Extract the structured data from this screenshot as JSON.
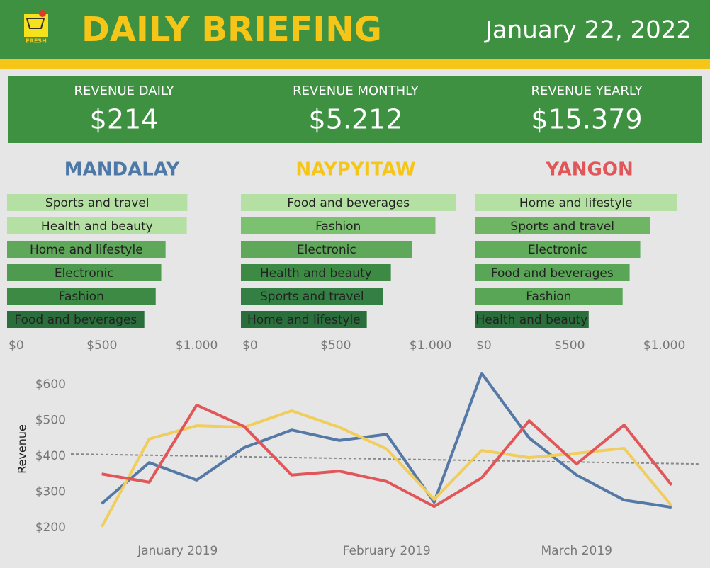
{
  "header": {
    "logo_text": "FRESH",
    "title": "DAILY BRIEFING",
    "date": "January 22, 2022"
  },
  "kpis": [
    {
      "label": "REVENUE DAILY",
      "value": "$214"
    },
    {
      "label": "REVENUE MONTHLY",
      "value": "$5.212"
    },
    {
      "label": "REVENUE YEARLY",
      "value": "$15.379"
    }
  ],
  "chart_data": [
    {
      "type": "hbar",
      "title": "MANDALAY",
      "title_color": "#4e79a7",
      "categories": [
        "Sports and travel",
        "Health and beauty",
        "Home and lifestyle",
        "Electronic",
        "Fashion",
        "Food and beverages"
      ],
      "values": [
        951,
        948,
        836,
        813,
        784,
        724
      ],
      "colors": [
        "#b5e0a3",
        "#b5e0a3",
        "#5fa85a",
        "#4e9a4f",
        "#3d8a45",
        "#2a6e3b"
      ],
      "xlim": [
        0,
        1140
      ],
      "xticks": [
        {
          "value": 0,
          "label": "$0"
        },
        {
          "value": 500,
          "label": "$500"
        },
        {
          "value": 1000,
          "label": "$1.000"
        }
      ]
    },
    {
      "type": "hbar",
      "title": "NAYPYITAW",
      "title_color": "#f5c518",
      "categories": [
        "Food and beverages",
        "Fashion",
        "Electronic",
        "Health and beauty",
        "Sports and travel",
        "Home and lifestyle"
      ],
      "values": [
        1134,
        1026,
        903,
        791,
        750,
        664
      ],
      "colors": [
        "#b5e0a3",
        "#7cc16f",
        "#5fa85a",
        "#3d8a45",
        "#347f43",
        "#2a6e3b"
      ],
      "xlim": [
        0,
        1140
      ],
      "xticks": [
        {
          "value": 0,
          "label": "$0"
        },
        {
          "value": 500,
          "label": "$500"
        },
        {
          "value": 1000,
          "label": "$1.000"
        }
      ]
    },
    {
      "type": "hbar",
      "title": "YANGON",
      "title_color": "#e15759",
      "categories": [
        "Home and lifestyle",
        "Sports and travel",
        "Electronic",
        "Food and beverages",
        "Fashion",
        "Health and beauty"
      ],
      "values": [
        1067,
        925,
        873,
        817,
        780,
        601
      ],
      "colors": [
        "#b5e0a3",
        "#6fb563",
        "#62ad5c",
        "#5aa657",
        "#5aa657",
        "#2a6e3b"
      ],
      "xlim": [
        0,
        1140
      ],
      "xticks": [
        {
          "value": 0,
          "label": "$0"
        },
        {
          "value": 500,
          "label": "$500"
        },
        {
          "value": 1000,
          "label": "$1.000"
        }
      ]
    },
    {
      "type": "line",
      "ylabel": "Revenue",
      "categories": [
        null,
        null,
        null,
        null,
        null,
        null,
        null,
        null,
        null,
        null,
        null,
        null,
        null
      ],
      "series": [
        {
          "name": "MANDALAY",
          "color": "#5579a6",
          "values": [
            267,
            382,
            333,
            424,
            473,
            444,
            461,
            271,
            632,
            451,
            347,
            277,
            257
          ]
        },
        {
          "name": "NAYPYITAW",
          "color": "#f0cd5c",
          "values": [
            202,
            448,
            485,
            481,
            527,
            481,
            420,
            279,
            416,
            396,
            408,
            422,
            261
          ]
        },
        {
          "name": "YANGON",
          "color": "#e15759",
          "values": [
            350,
            327,
            543,
            483,
            347,
            358,
            329,
            259,
            339,
            499,
            378,
            487,
            319
          ]
        }
      ],
      "trend": [
        406,
        378
      ],
      "xlim": [
        -0.65,
        12.6
      ],
      "xticks": [
        {
          "value": 1.6,
          "label": "January 2019"
        },
        {
          "value": 6,
          "label": "February 2019"
        },
        {
          "value": 10,
          "label": "March 2019"
        }
      ],
      "ylim": [
        180,
        640
      ],
      "yticks": [
        {
          "value": 200,
          "label": "$200"
        },
        {
          "value": 300,
          "label": "$300"
        },
        {
          "value": 400,
          "label": "$400"
        },
        {
          "value": 500,
          "label": "$500"
        },
        {
          "value": 600,
          "label": "$600"
        }
      ]
    }
  ]
}
